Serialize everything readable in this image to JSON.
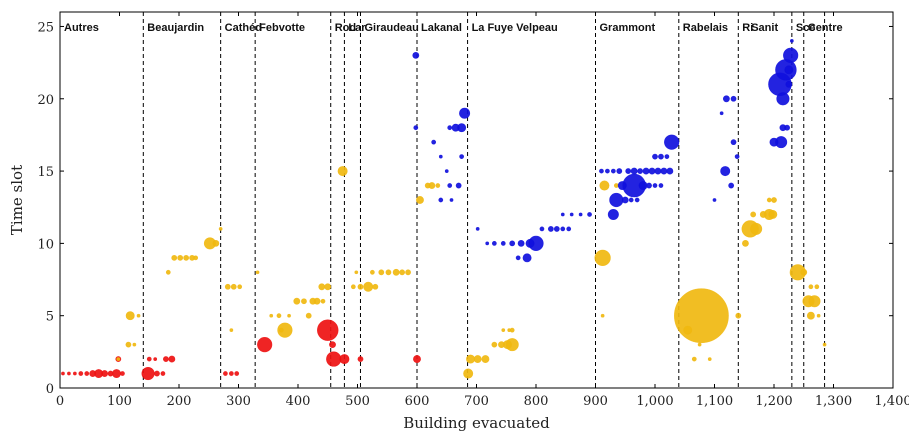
{
  "chart_data": {
    "type": "scatter",
    "xlabel": "Building evacuated",
    "ylabel": "Time slot",
    "xlim": [
      0,
      1400
    ],
    "ylim": [
      0,
      26
    ],
    "x_ticks": [
      "0",
      "100",
      "200",
      "300",
      "400",
      "500",
      "600",
      "700",
      "800",
      "900",
      "1,000",
      "1,100",
      "1,200",
      "1,300",
      "1,400"
    ],
    "y_ticks": [
      "0",
      "5",
      "10",
      "15",
      "20",
      "25"
    ],
    "grid": false,
    "bubble_size_encoded": true,
    "colors": {
      "red": "#ee1111",
      "gold": "#f0b810",
      "blue": "#1010dd"
    },
    "groups": [
      {
        "label": "Autres",
        "x_start": 0,
        "x_end": 140
      },
      {
        "label": "Beaujardin",
        "x_start": 140,
        "x_end": 270
      },
      {
        "label": "Cathéd",
        "x_start": 270,
        "x_end": 328
      },
      {
        "label": "Febvotte",
        "x_start": 328,
        "x_end": 455
      },
      {
        "label": "Rod",
        "x_start": 455,
        "x_end": 478
      },
      {
        "label": "Lar",
        "x_start": 478,
        "x_end": 505
      },
      {
        "label": "Giraudeau",
        "x_start": 505,
        "x_end": 600
      },
      {
        "label": "Lakanal",
        "x_start": 600,
        "x_end": 685
      },
      {
        "label": "La Fuye Velpeau",
        "x_start": 685,
        "x_end": 900
      },
      {
        "label": "Grammont",
        "x_start": 900,
        "x_end": 1040
      },
      {
        "label": "Rabelais",
        "x_start": 1040,
        "x_end": 1140
      },
      {
        "label": "Ri",
        "x_start": 1140,
        "x_end": 1155
      },
      {
        "label": "Sanit",
        "x_start": 1155,
        "x_end": 1230
      },
      {
        "label": "Sce",
        "x_start": 1230,
        "x_end": 1250
      },
      {
        "label": "Centre",
        "x_start": 1250,
        "x_end": 1285
      }
    ],
    "boundaries": [
      140,
      270,
      328,
      455,
      478,
      505,
      600,
      685,
      900,
      1040,
      1140,
      1230,
      1250,
      1285
    ],
    "series": [
      {
        "color": "red",
        "points": [
          {
            "x": 5,
            "y": 1,
            "s": 1.5
          },
          {
            "x": 15,
            "y": 1,
            "s": 1.5
          },
          {
            "x": 25,
            "y": 1,
            "s": 1.5
          },
          {
            "x": 35,
            "y": 1,
            "s": 2
          },
          {
            "x": 45,
            "y": 1,
            "s": 2
          },
          {
            "x": 55,
            "y": 1,
            "s": 3
          },
          {
            "x": 65,
            "y": 1,
            "s": 4
          },
          {
            "x": 75,
            "y": 1,
            "s": 3
          },
          {
            "x": 85,
            "y": 1,
            "s": 2.5
          },
          {
            "x": 95,
            "y": 1,
            "s": 4
          },
          {
            "x": 105,
            "y": 1,
            "s": 2
          },
          {
            "x": 98,
            "y": 2,
            "s": 2.5
          },
          {
            "x": 148,
            "y": 1,
            "s": 6
          },
          {
            "x": 163,
            "y": 1,
            "s": 2.5
          },
          {
            "x": 173,
            "y": 1,
            "s": 2
          },
          {
            "x": 150,
            "y": 2,
            "s": 2
          },
          {
            "x": 160,
            "y": 2,
            "s": 1.5
          },
          {
            "x": 178,
            "y": 2,
            "s": 2.5
          },
          {
            "x": 188,
            "y": 2,
            "s": 3
          },
          {
            "x": 278,
            "y": 1,
            "s": 2
          },
          {
            "x": 288,
            "y": 1,
            "s": 2
          },
          {
            "x": 297,
            "y": 1,
            "s": 2
          },
          {
            "x": 344,
            "y": 3,
            "s": 7
          },
          {
            "x": 450,
            "y": 4,
            "s": 10
          },
          {
            "x": 460,
            "y": 2,
            "s": 7
          },
          {
            "x": 478,
            "y": 2,
            "s": 4.5
          },
          {
            "x": 458,
            "y": 3,
            "s": 3
          },
          {
            "x": 505,
            "y": 2,
            "s": 2.5
          },
          {
            "x": 600,
            "y": 2,
            "s": 3.5
          }
        ]
      },
      {
        "color": "gold",
        "points": [
          {
            "x": 98,
            "y": 2,
            "s": 1.5
          },
          {
            "x": 115,
            "y": 3,
            "s": 2.5
          },
          {
            "x": 125,
            "y": 3,
            "s": 1.5
          },
          {
            "x": 118,
            "y": 5,
            "s": 4
          },
          {
            "x": 132,
            "y": 5,
            "s": 1.5
          },
          {
            "x": 192,
            "y": 9,
            "s": 2.5
          },
          {
            "x": 202,
            "y": 9,
            "s": 2.5
          },
          {
            "x": 212,
            "y": 9,
            "s": 2.5
          },
          {
            "x": 222,
            "y": 9,
            "s": 2.5
          },
          {
            "x": 228,
            "y": 9,
            "s": 2
          },
          {
            "x": 182,
            "y": 8,
            "s": 2
          },
          {
            "x": 252,
            "y": 10,
            "s": 5.5
          },
          {
            "x": 262,
            "y": 10,
            "s": 3
          },
          {
            "x": 270,
            "y": 11,
            "s": 1.5
          },
          {
            "x": 282,
            "y": 7,
            "s": 2.5
          },
          {
            "x": 292,
            "y": 7,
            "s": 2.5
          },
          {
            "x": 302,
            "y": 7,
            "s": 2
          },
          {
            "x": 288,
            "y": 4,
            "s": 1.5
          },
          {
            "x": 332,
            "y": 8,
            "s": 1.5
          },
          {
            "x": 355,
            "y": 5,
            "s": 1.5
          },
          {
            "x": 368,
            "y": 5,
            "s": 2
          },
          {
            "x": 378,
            "y": 4,
            "s": 7
          },
          {
            "x": 372,
            "y": 4,
            "s": 2
          },
          {
            "x": 385,
            "y": 5,
            "s": 1.5
          },
          {
            "x": 398,
            "y": 6,
            "s": 3
          },
          {
            "x": 410,
            "y": 6,
            "s": 2.5
          },
          {
            "x": 418,
            "y": 5,
            "s": 2.5
          },
          {
            "x": 425,
            "y": 6,
            "s": 3
          },
          {
            "x": 432,
            "y": 6,
            "s": 3
          },
          {
            "x": 440,
            "y": 7,
            "s": 3
          },
          {
            "x": 450,
            "y": 7,
            "s": 3
          },
          {
            "x": 442,
            "y": 6,
            "s": 2
          },
          {
            "x": 475,
            "y": 15,
            "s": 4.5
          },
          {
            "x": 493,
            "y": 7,
            "s": 2
          },
          {
            "x": 505,
            "y": 7,
            "s": 2.5
          },
          {
            "x": 518,
            "y": 7,
            "s": 4.5
          },
          {
            "x": 530,
            "y": 7,
            "s": 2.5
          },
          {
            "x": 498,
            "y": 8,
            "s": 1.5
          },
          {
            "x": 525,
            "y": 8,
            "s": 2
          },
          {
            "x": 540,
            "y": 8,
            "s": 2.5
          },
          {
            "x": 552,
            "y": 8,
            "s": 2.5
          },
          {
            "x": 565,
            "y": 8,
            "s": 3
          },
          {
            "x": 575,
            "y": 8,
            "s": 2.5
          },
          {
            "x": 585,
            "y": 8,
            "s": 2.5
          },
          {
            "x": 605,
            "y": 13,
            "s": 3.5
          },
          {
            "x": 618,
            "y": 14,
            "s": 2.5
          },
          {
            "x": 625,
            "y": 14,
            "s": 3
          },
          {
            "x": 635,
            "y": 14,
            "s": 2
          },
          {
            "x": 690,
            "y": 2,
            "s": 4
          },
          {
            "x": 702,
            "y": 2,
            "s": 3.5
          },
          {
            "x": 715,
            "y": 2,
            "s": 3.5
          },
          {
            "x": 686,
            "y": 1,
            "s": 4.5
          },
          {
            "x": 730,
            "y": 3,
            "s": 2.5
          },
          {
            "x": 742,
            "y": 3,
            "s": 3
          },
          {
            "x": 752,
            "y": 3,
            "s": 4
          },
          {
            "x": 760,
            "y": 3,
            "s": 6
          },
          {
            "x": 760,
            "y": 4,
            "s": 2
          },
          {
            "x": 755,
            "y": 4,
            "s": 1.5
          },
          {
            "x": 745,
            "y": 4,
            "s": 1.5
          },
          {
            "x": 935,
            "y": 14,
            "s": 2
          },
          {
            "x": 915,
            "y": 14,
            "s": 4.5
          },
          {
            "x": 912,
            "y": 9,
            "s": 7.5
          },
          {
            "x": 912,
            "y": 5,
            "s": 1.5
          },
          {
            "x": 1078,
            "y": 5,
            "s": 26
          },
          {
            "x": 1055,
            "y": 4,
            "s": 4
          },
          {
            "x": 1066,
            "y": 2,
            "s": 2
          },
          {
            "x": 1092,
            "y": 2,
            "s": 1.5
          },
          {
            "x": 1075,
            "y": 3,
            "s": 1.5
          },
          {
            "x": 1140,
            "y": 5,
            "s": 2.5
          },
          {
            "x": 1152,
            "y": 10,
            "s": 3
          },
          {
            "x": 1160,
            "y": 11,
            "s": 8
          },
          {
            "x": 1170,
            "y": 11,
            "s": 5.5
          },
          {
            "x": 1165,
            "y": 12,
            "s": 2.5
          },
          {
            "x": 1182,
            "y": 12,
            "s": 3
          },
          {
            "x": 1192,
            "y": 12,
            "s": 5
          },
          {
            "x": 1198,
            "y": 12,
            "s": 4
          },
          {
            "x": 1192,
            "y": 13,
            "s": 2
          },
          {
            "x": 1200,
            "y": 13,
            "s": 2.5
          },
          {
            "x": 1240,
            "y": 8,
            "s": 7.5
          },
          {
            "x": 1250,
            "y": 8,
            "s": 3
          },
          {
            "x": 1258,
            "y": 6,
            "s": 5.5
          },
          {
            "x": 1268,
            "y": 6,
            "s": 5.5
          },
          {
            "x": 1262,
            "y": 5,
            "s": 3.5
          },
          {
            "x": 1262,
            "y": 7,
            "s": 2
          },
          {
            "x": 1272,
            "y": 7,
            "s": 2
          },
          {
            "x": 1275,
            "y": 5,
            "s": 1.5
          },
          {
            "x": 1285,
            "y": 3,
            "s": 1.5
          }
        ]
      },
      {
        "color": "blue",
        "points": [
          {
            "x": 598,
            "y": 23,
            "s": 3
          },
          {
            "x": 598,
            "y": 18,
            "s": 2
          },
          {
            "x": 628,
            "y": 17,
            "s": 2
          },
          {
            "x": 640,
            "y": 16,
            "s": 1.5
          },
          {
            "x": 650,
            "y": 15,
            "s": 1.5
          },
          {
            "x": 655,
            "y": 14,
            "s": 2
          },
          {
            "x": 670,
            "y": 14,
            "s": 2.5
          },
          {
            "x": 640,
            "y": 13,
            "s": 2
          },
          {
            "x": 658,
            "y": 13,
            "s": 1.5
          },
          {
            "x": 675,
            "y": 16,
            "s": 2
          },
          {
            "x": 655,
            "y": 18,
            "s": 2
          },
          {
            "x": 665,
            "y": 18,
            "s": 3.5
          },
          {
            "x": 675,
            "y": 18,
            "s": 4
          },
          {
            "x": 680,
            "y": 19,
            "s": 5
          },
          {
            "x": 702,
            "y": 11,
            "s": 1.5
          },
          {
            "x": 718,
            "y": 10,
            "s": 1.5
          },
          {
            "x": 730,
            "y": 10,
            "s": 2
          },
          {
            "x": 745,
            "y": 10,
            "s": 2
          },
          {
            "x": 760,
            "y": 10,
            "s": 2.5
          },
          {
            "x": 775,
            "y": 10,
            "s": 3
          },
          {
            "x": 790,
            "y": 10,
            "s": 4
          },
          {
            "x": 800,
            "y": 10,
            "s": 7
          },
          {
            "x": 785,
            "y": 9,
            "s": 4
          },
          {
            "x": 770,
            "y": 9,
            "s": 2
          },
          {
            "x": 810,
            "y": 11,
            "s": 2
          },
          {
            "x": 825,
            "y": 11,
            "s": 2.5
          },
          {
            "x": 835,
            "y": 11,
            "s": 2.5
          },
          {
            "x": 845,
            "y": 11,
            "s": 2
          },
          {
            "x": 855,
            "y": 11,
            "s": 2
          },
          {
            "x": 845,
            "y": 12,
            "s": 1.5
          },
          {
            "x": 860,
            "y": 12,
            "s": 1.5
          },
          {
            "x": 875,
            "y": 12,
            "s": 1.5
          },
          {
            "x": 890,
            "y": 12,
            "s": 2
          },
          {
            "x": 910,
            "y": 15,
            "s": 2
          },
          {
            "x": 920,
            "y": 15,
            "s": 2
          },
          {
            "x": 930,
            "y": 15,
            "s": 2
          },
          {
            "x": 940,
            "y": 15,
            "s": 2.5
          },
          {
            "x": 955,
            "y": 15,
            "s": 2.5
          },
          {
            "x": 965,
            "y": 15,
            "s": 3
          },
          {
            "x": 975,
            "y": 15,
            "s": 2.5
          },
          {
            "x": 985,
            "y": 15,
            "s": 3
          },
          {
            "x": 995,
            "y": 15,
            "s": 3
          },
          {
            "x": 1005,
            "y": 15,
            "s": 3
          },
          {
            "x": 1015,
            "y": 15,
            "s": 3
          },
          {
            "x": 1025,
            "y": 15,
            "s": 3
          },
          {
            "x": 1000,
            "y": 16,
            "s": 2.5
          },
          {
            "x": 1010,
            "y": 16,
            "s": 2.5
          },
          {
            "x": 1020,
            "y": 16,
            "s": 2
          },
          {
            "x": 1028,
            "y": 17,
            "s": 7
          },
          {
            "x": 930,
            "y": 12,
            "s": 5
          },
          {
            "x": 935,
            "y": 13,
            "s": 6.5
          },
          {
            "x": 965,
            "y": 14,
            "s": 11
          },
          {
            "x": 945,
            "y": 14,
            "s": 4
          },
          {
            "x": 980,
            "y": 14,
            "s": 4
          },
          {
            "x": 990,
            "y": 14,
            "s": 2.5
          },
          {
            "x": 1000,
            "y": 14,
            "s": 2
          },
          {
            "x": 1010,
            "y": 14,
            "s": 2
          },
          {
            "x": 950,
            "y": 13,
            "s": 3
          },
          {
            "x": 960,
            "y": 13,
            "s": 2
          },
          {
            "x": 970,
            "y": 13,
            "s": 2
          },
          {
            "x": 1100,
            "y": 13,
            "s": 1.5
          },
          {
            "x": 1118,
            "y": 15,
            "s": 4.5
          },
          {
            "x": 1128,
            "y": 14,
            "s": 2.5
          },
          {
            "x": 1132,
            "y": 17,
            "s": 2.5
          },
          {
            "x": 1138,
            "y": 16,
            "s": 2
          },
          {
            "x": 1112,
            "y": 19,
            "s": 1.5
          },
          {
            "x": 1120,
            "y": 20,
            "s": 3
          },
          {
            "x": 1132,
            "y": 20,
            "s": 2.5
          },
          {
            "x": 1200,
            "y": 17,
            "s": 4
          },
          {
            "x": 1212,
            "y": 17,
            "s": 5.5
          },
          {
            "x": 1215,
            "y": 18,
            "s": 3
          },
          {
            "x": 1222,
            "y": 18,
            "s": 2.5
          },
          {
            "x": 1210,
            "y": 21,
            "s": 11
          },
          {
            "x": 1220,
            "y": 22,
            "s": 10
          },
          {
            "x": 1215,
            "y": 20,
            "s": 6
          },
          {
            "x": 1228,
            "y": 23,
            "s": 7
          },
          {
            "x": 1225,
            "y": 22,
            "s": 4
          },
          {
            "x": 1230,
            "y": 24,
            "s": 1.5
          },
          {
            "x": 1225,
            "y": 21,
            "s": 3
          }
        ]
      }
    ]
  }
}
